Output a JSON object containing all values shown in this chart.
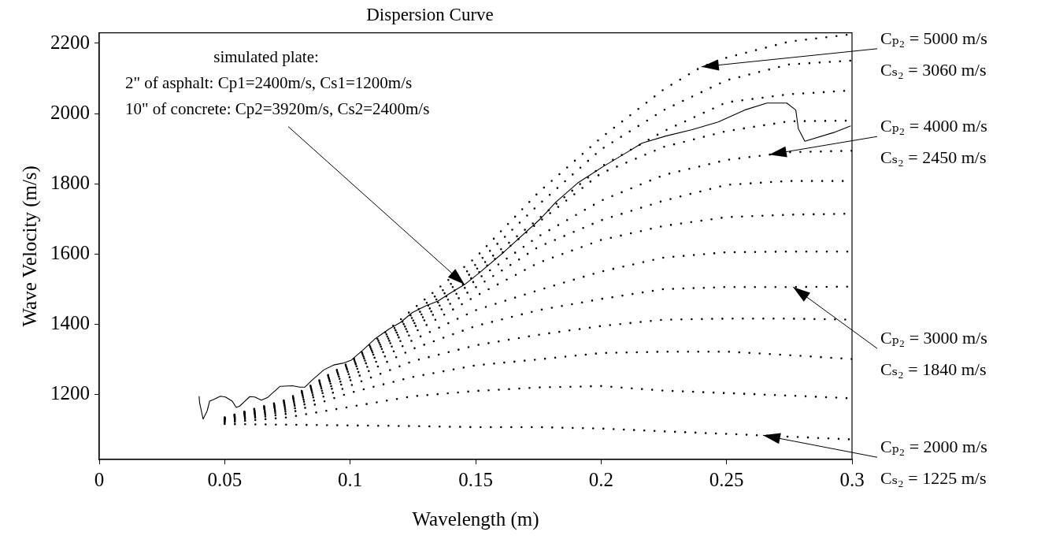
{
  "chart_data": {
    "type": "line",
    "title": "Dispersion Curve",
    "xlabel": "Wavelength (m)",
    "ylabel": "Wave Velocity (m/s)",
    "x": [
      0.05,
      0.075,
      0.1,
      0.125,
      0.15,
      0.175,
      0.2,
      0.225,
      0.25,
      0.275,
      0.3
    ],
    "series": [
      {
        "color": "#000000",
        "line_style": "solid",
        "x": [
          0.0398,
          0.04,
          0.0414,
          0.043,
          0.044,
          0.0457,
          0.0483,
          0.0503,
          0.053,
          0.0546,
          0.056,
          0.06,
          0.062,
          0.0646,
          0.067,
          0.072,
          0.077,
          0.08,
          0.082,
          0.085,
          0.0895,
          0.0934,
          0.097,
          0.1005,
          0.105,
          0.11,
          0.1156,
          0.12,
          0.1247,
          0.13,
          0.135,
          0.14,
          0.1456,
          0.1516,
          0.1615,
          0.1758,
          0.182,
          0.191,
          0.2008,
          0.2104,
          0.2164,
          0.2258,
          0.2363,
          0.2467,
          0.2572,
          0.2661,
          0.274,
          0.2776,
          0.2786,
          0.2812,
          0.2927,
          0.2995
        ],
        "values": [
          1195,
          1177,
          1130,
          1153,
          1181,
          1186,
          1195,
          1193,
          1181,
          1163,
          1167,
          1194,
          1193,
          1184,
          1191,
          1223,
          1225,
          1221,
          1221,
          1242,
          1270,
          1284,
          1289,
          1298,
          1326,
          1359,
          1387,
          1405,
          1433,
          1452,
          1466,
          1489,
          1513,
          1547,
          1607,
          1700,
          1748,
          1804,
          1849,
          1890,
          1916,
          1936,
          1954,
          1976,
          2010,
          2030,
          2030,
          2010,
          1957,
          1921,
          1946,
          1965
        ]
      },
      {
        "color": "#000000",
        "line_style": "dotted",
        "x": [
          0.05,
          0.075,
          0.1,
          0.125,
          0.15,
          0.175,
          0.2,
          0.225,
          0.24,
          0.25,
          0.275,
          0.3
        ],
        "values": [
          1135,
          1186,
          1293,
          1443,
          1590,
          1775,
          1931,
          2069,
          2133,
          2159,
          2205,
          2226
        ]
      },
      {
        "color": "#000000",
        "line_style": "dotted",
        "values": [
          1134,
          1183,
          1290,
          1430,
          1570,
          1740,
          1898,
          2010,
          2095,
          2140,
          2151
        ]
      },
      {
        "color": "#000000",
        "line_style": "dotted",
        "values": [
          1133,
          1180,
          1285,
          1420,
          1555,
          1700,
          1849,
          1950,
          2032,
          2055,
          2066
        ]
      },
      {
        "color": "#000000",
        "line_style": "dotted",
        "values": [
          1132,
          1178,
          1280,
          1410,
          1540,
          1690,
          1830,
          1905,
          1950,
          1978,
          1980
        ]
      },
      {
        "color": "#000000",
        "line_style": "dotted",
        "values": [
          1131,
          1175,
          1275,
          1400,
          1525,
          1650,
          1752,
          1825,
          1868,
          1890,
          1894
        ]
      },
      {
        "color": "#000000",
        "line_style": "dotted",
        "values": [
          1130,
          1172,
          1268,
          1390,
          1505,
          1620,
          1696,
          1752,
          1797,
          1808,
          1808
        ]
      },
      {
        "color": "#000000",
        "line_style": "dotted",
        "values": [
          1129,
          1168,
          1260,
          1375,
          1480,
          1575,
          1640,
          1680,
          1705,
          1712,
          1715
        ]
      },
      {
        "color": "#000000",
        "line_style": "dotted",
        "values": [
          1128,
          1163,
          1250,
          1355,
          1440,
          1497,
          1550,
          1590,
          1605,
          1607,
          1607
        ]
      },
      {
        "color": "#000000",
        "line_style": "dotted",
        "values": [
          1127,
          1158,
          1240,
          1330,
          1395,
          1440,
          1472,
          1500,
          1506,
          1506,
          1507
        ]
      },
      {
        "color": "#000000",
        "line_style": "dotted",
        "values": [
          1125,
          1152,
          1225,
          1295,
          1340,
          1370,
          1395,
          1413,
          1416,
          1416,
          1413
        ]
      },
      {
        "color": "#000000",
        "line_style": "dotted",
        "values": [
          1123,
          1145,
          1205,
          1250,
          1283,
          1300,
          1318,
          1322,
          1322,
          1312,
          1301
        ]
      },
      {
        "color": "#000000",
        "line_style": "dotted",
        "values": [
          1120,
          1135,
          1165,
          1195,
          1210,
          1220,
          1224,
          1211,
          1204,
          1197,
          1189
        ]
      },
      {
        "color": "#000000",
        "line_style": "dotted",
        "values": [
          1116,
          1114,
          1112,
          1110,
          1107,
          1107,
          1103,
          1095,
          1088,
          1080,
          1072
        ]
      }
    ],
    "xlim": [
      0,
      0.3
    ],
    "xticks": [
      0,
      0.05,
      0.1,
      0.15,
      0.2,
      0.25,
      0.3
    ],
    "ylim": [
      1015,
      2230
    ],
    "yticks": [
      1200,
      1400,
      1600,
      1800,
      2000,
      2200
    ],
    "grid": false,
    "legend": false,
    "marker": "none",
    "annotations": [
      {
        "text": "simulated plate:\n2\" of asphalt: Cp1=2400m/s, Cs1=1200m/s\n10\" of concrete: Cp2=3920m/s, Cs2=2400m/s",
        "x": 0.1456,
        "y": 1513
      },
      {
        "text": "Cₚ₂ = 5000 m/s\nCₛ₂ = 3060 m/s",
        "x": 0.24,
        "y": 2133
      },
      {
        "text": "Cₚ₂ = 4000 m/s\nCₛ₂ = 2450 m/s",
        "x": 0.267,
        "y": 1883
      },
      {
        "text": "Cₚ₂ = 3000 m/s\nCₛ₂ = 1840 m/s",
        "x": 0.2765,
        "y": 1506
      },
      {
        "text": "Cₚ₂ = 2000 m/s\nCₛ₂ = 1225 m/s",
        "x": 0.2645,
        "y": 1084
      }
    ]
  }
}
